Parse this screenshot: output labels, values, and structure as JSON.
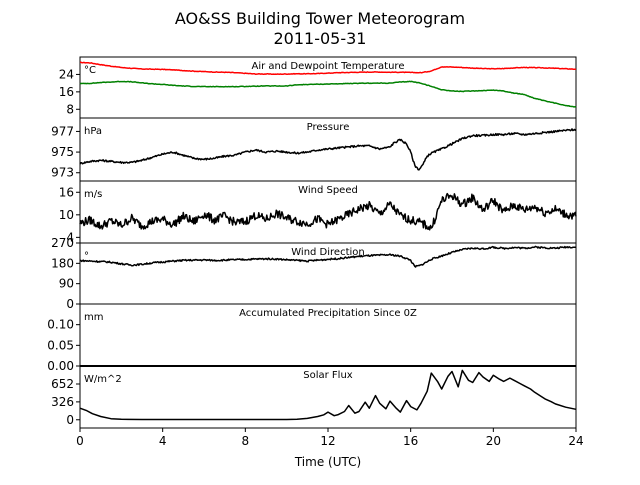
{
  "figure": {
    "title_line1": "AO&SS Building Tower Meteorogram",
    "title_line2": "2011-05-31",
    "xlabel": "Time (UTC)"
  },
  "chart_data": [
    {
      "type": "line",
      "title": "Air and Dewpoint Temperature",
      "unit": "°C",
      "xlim": [
        0,
        24
      ],
      "ylim": [
        4,
        32
      ],
      "yticks": [
        8,
        16,
        24
      ],
      "series": [
        {
          "color": "#ff0000",
          "x": [
            0,
            0.5,
            1,
            1.5,
            2,
            2.5,
            3,
            3.5,
            4,
            4.5,
            5,
            5.5,
            6,
            6.5,
            7,
            7.5,
            8,
            8.5,
            9,
            9.5,
            10,
            10.5,
            11,
            11.5,
            12,
            12.5,
            13,
            13.5,
            14,
            14.5,
            15,
            15.5,
            16,
            16.5,
            17,
            17.5,
            18,
            18.5,
            19,
            19.5,
            20,
            20.5,
            21,
            21.5,
            22,
            22.5,
            23,
            23.5,
            24
          ],
          "values": [
            29.5,
            29.3,
            28.5,
            27.8,
            27.2,
            26.8,
            26.5,
            26.4,
            26.3,
            26.1,
            25.8,
            25.5,
            25.3,
            25.1,
            25.0,
            24.8,
            24.5,
            24.2,
            24.2,
            24.1,
            24.2,
            24.3,
            24.3,
            24.4,
            24.6,
            24.8,
            24.9,
            25.0,
            25.1,
            25.1,
            25.0,
            25.0,
            24.9,
            24.8,
            25.6,
            27.5,
            27.4,
            27.2,
            26.9,
            26.7,
            26.6,
            26.7,
            27.0,
            27.2,
            27.1,
            27.0,
            26.8,
            26.6,
            26.4
          ]
        },
        {
          "color": "#008000",
          "x": [
            0,
            0.5,
            1,
            1.5,
            2,
            2.5,
            3,
            3.5,
            4,
            4.5,
            5,
            5.5,
            6,
            6.5,
            7,
            7.5,
            8,
            8.5,
            9,
            9.5,
            10,
            10.5,
            11,
            11.5,
            12,
            12.5,
            13,
            13.5,
            14,
            14.5,
            15,
            15.5,
            16,
            16.5,
            17,
            17.5,
            18,
            18.5,
            19,
            19.5,
            20,
            20.5,
            21,
            21.5,
            22,
            22.5,
            23,
            23.5,
            24
          ],
          "values": [
            19.8,
            19.9,
            20.3,
            20.5,
            20.8,
            20.6,
            20.1,
            19.7,
            19.4,
            19.0,
            18.7,
            18.5,
            18.4,
            18.4,
            18.4,
            18.4,
            18.5,
            18.6,
            18.7,
            18.7,
            18.7,
            19.2,
            19.4,
            19.5,
            19.6,
            19.7,
            19.8,
            19.9,
            20.0,
            20.0,
            20.0,
            20.5,
            20.8,
            20.0,
            18.5,
            17.0,
            16.4,
            16.2,
            16.4,
            16.6,
            16.8,
            16.4,
            15.4,
            14.8,
            13.0,
            11.8,
            10.8,
            9.8,
            9.0
          ]
        }
      ]
    },
    {
      "type": "line",
      "title": "Pressure",
      "unit": "hPa",
      "xlim": [
        0,
        24
      ],
      "ylim": [
        972.2,
        978.3
      ],
      "yticks": [
        973,
        975,
        977
      ],
      "series": [
        {
          "color": "#000000",
          "x": [
            0,
            0.5,
            1,
            1.5,
            2,
            2.5,
            3,
            3.5,
            4,
            4.5,
            5,
            5.5,
            6,
            6.5,
            7,
            7.5,
            8,
            8.5,
            9,
            9.5,
            10,
            10.5,
            11,
            11.5,
            12,
            12.5,
            13,
            13.5,
            14,
            14.5,
            15,
            15.2,
            15.5,
            15.8,
            16,
            16.2,
            16.4,
            16.6,
            16.8,
            17,
            17.5,
            18,
            18.5,
            19,
            19.5,
            20,
            20.5,
            21,
            21.5,
            22,
            22.5,
            23,
            23.5,
            24
          ],
          "values": [
            973.9,
            974.1,
            974.2,
            974.1,
            974.0,
            974.0,
            974.2,
            974.5,
            974.8,
            975.0,
            974.7,
            974.4,
            974.3,
            974.4,
            974.6,
            974.7,
            975.0,
            975.2,
            975.0,
            975.1,
            975.0,
            974.9,
            975.0,
            975.2,
            975.3,
            975.4,
            975.5,
            975.6,
            975.6,
            975.3,
            975.5,
            975.9,
            976.2,
            975.8,
            975.0,
            973.7,
            973.3,
            973.8,
            974.6,
            974.9,
            975.3,
            975.8,
            976.3,
            976.6,
            976.6,
            976.7,
            976.7,
            976.8,
            976.7,
            976.8,
            976.9,
            977.0,
            977.1,
            977.2
          ]
        }
      ]
    },
    {
      "type": "line",
      "title": "Wind Speed",
      "unit": "m/s",
      "xlim": [
        0,
        24
      ],
      "ylim": [
        2.5,
        19.0
      ],
      "yticks": [
        4,
        10,
        16
      ],
      "series": [
        {
          "color": "#000000",
          "x": [
            0,
            0.5,
            1,
            1.5,
            2,
            2.5,
            3,
            3.5,
            4,
            4.5,
            5,
            5.5,
            6,
            6.5,
            7,
            7.5,
            8,
            8.5,
            9,
            9.5,
            10,
            10.5,
            11,
            11.5,
            12,
            12.5,
            13,
            13.5,
            14,
            14.5,
            15,
            15.5,
            16,
            16.5,
            17,
            17.5,
            18,
            18.5,
            19,
            19.5,
            20,
            20.5,
            21,
            21.5,
            22,
            22.5,
            23,
            23.5,
            24
          ],
          "values": [
            7.8,
            8.6,
            6.9,
            8.4,
            7.2,
            9.1,
            7.0,
            8.3,
            8.8,
            7.4,
            9.6,
            8.1,
            10.2,
            8.6,
            9.7,
            7.9,
            8.2,
            9.9,
            8.8,
            10.4,
            9.1,
            8.3,
            7.6,
            8.9,
            7.4,
            8.8,
            10.1,
            11.6,
            12.4,
            10.2,
            12.8,
            9.8,
            8.6,
            7.9,
            6.4,
            13.8,
            15.2,
            12.7,
            14.6,
            11.2,
            13.9,
            10.8,
            12.6,
            11.3,
            12.2,
            10.6,
            11.5,
            10.1,
            9.6
          ]
        }
      ]
    },
    {
      "type": "line",
      "title": "Wind Direction",
      "unit": "°",
      "xlim": [
        0,
        24
      ],
      "ylim": [
        0,
        270
      ],
      "yticks": [
        0,
        90,
        180,
        270
      ],
      "series": [
        {
          "color": "#000000",
          "x": [
            0,
            0.5,
            1,
            1.5,
            2,
            2.5,
            3,
            3.5,
            4,
            4.5,
            5,
            5.5,
            6,
            6.5,
            7,
            7.5,
            8,
            8.5,
            9,
            9.5,
            10,
            10.5,
            11,
            11.5,
            12,
            12.5,
            13,
            13.5,
            14,
            14.5,
            15,
            15.5,
            16,
            16.2,
            16.5,
            17,
            17.5,
            18,
            18.5,
            19,
            19.5,
            20,
            20.5,
            21,
            21.5,
            22,
            22.5,
            23,
            23.5,
            24
          ],
          "values": [
            192,
            190,
            188,
            185,
            178,
            172,
            176,
            182,
            186,
            190,
            193,
            194,
            195,
            193,
            194,
            196,
            197,
            199,
            200,
            199,
            196,
            193,
            190,
            194,
            198,
            201,
            206,
            211,
            214,
            216,
            218,
            212,
            194,
            165,
            172,
            198,
            213,
            228,
            241,
            247,
            244,
            251,
            246,
            250,
            247,
            252,
            249,
            247,
            252,
            251
          ]
        }
      ]
    },
    {
      "type": "line",
      "title": "Accumulated Precipitation Since 0Z",
      "unit": "mm",
      "xlim": [
        0,
        24
      ],
      "ylim": [
        0,
        0.15
      ],
      "yticks": [
        0.0,
        0.05,
        0.1
      ],
      "ytick_labels": [
        "0.00",
        "0.05",
        "0.10"
      ],
      "series": [
        {
          "color": "#000000",
          "x": [
            0,
            24
          ],
          "values": [
            0,
            0
          ]
        }
      ]
    },
    {
      "type": "line",
      "title": "Solar Flux",
      "unit": "W/m^2",
      "xlim": [
        0,
        24
      ],
      "ylim": [
        -150,
        980
      ],
      "yticks": [
        0,
        326,
        652
      ],
      "series": [
        {
          "color": "#000000",
          "x": [
            0,
            0.3,
            0.6,
            1,
            1.5,
            2,
            3,
            4,
            5,
            6,
            7,
            8,
            9,
            10,
            10.5,
            11,
            11.5,
            11.8,
            12,
            12.3,
            12.5,
            12.8,
            13,
            13.3,
            13.5,
            13.8,
            14,
            14.3,
            14.5,
            14.8,
            15,
            15.3,
            15.5,
            15.8,
            16,
            16.3,
            16.5,
            16.8,
            17,
            17.3,
            17.5,
            17.8,
            18,
            18.3,
            18.5,
            18.8,
            19,
            19.3,
            19.5,
            19.8,
            20,
            20.3,
            20.5,
            20.8,
            21,
            21.3,
            21.5,
            21.8,
            22,
            22.3,
            22.5,
            22.8,
            23,
            23.5,
            24
          ],
          "values": [
            210,
            170,
            110,
            60,
            20,
            8,
            5,
            5,
            5,
            5,
            5,
            5,
            5,
            5,
            10,
            25,
            60,
            90,
            140,
            75,
            95,
            150,
            260,
            120,
            150,
            320,
            210,
            440,
            300,
            200,
            340,
            210,
            140,
            350,
            240,
            180,
            300,
            520,
            850,
            700,
            560,
            790,
            880,
            600,
            900,
            720,
            680,
            860,
            780,
            700,
            810,
            740,
            700,
            760,
            720,
            660,
            620,
            560,
            500,
            430,
            380,
            330,
            290,
            230,
            190
          ]
        }
      ]
    }
  ],
  "xaxis": {
    "ticks": [
      "0",
      "4",
      "8",
      "12",
      "16",
      "20",
      "24"
    ]
  }
}
